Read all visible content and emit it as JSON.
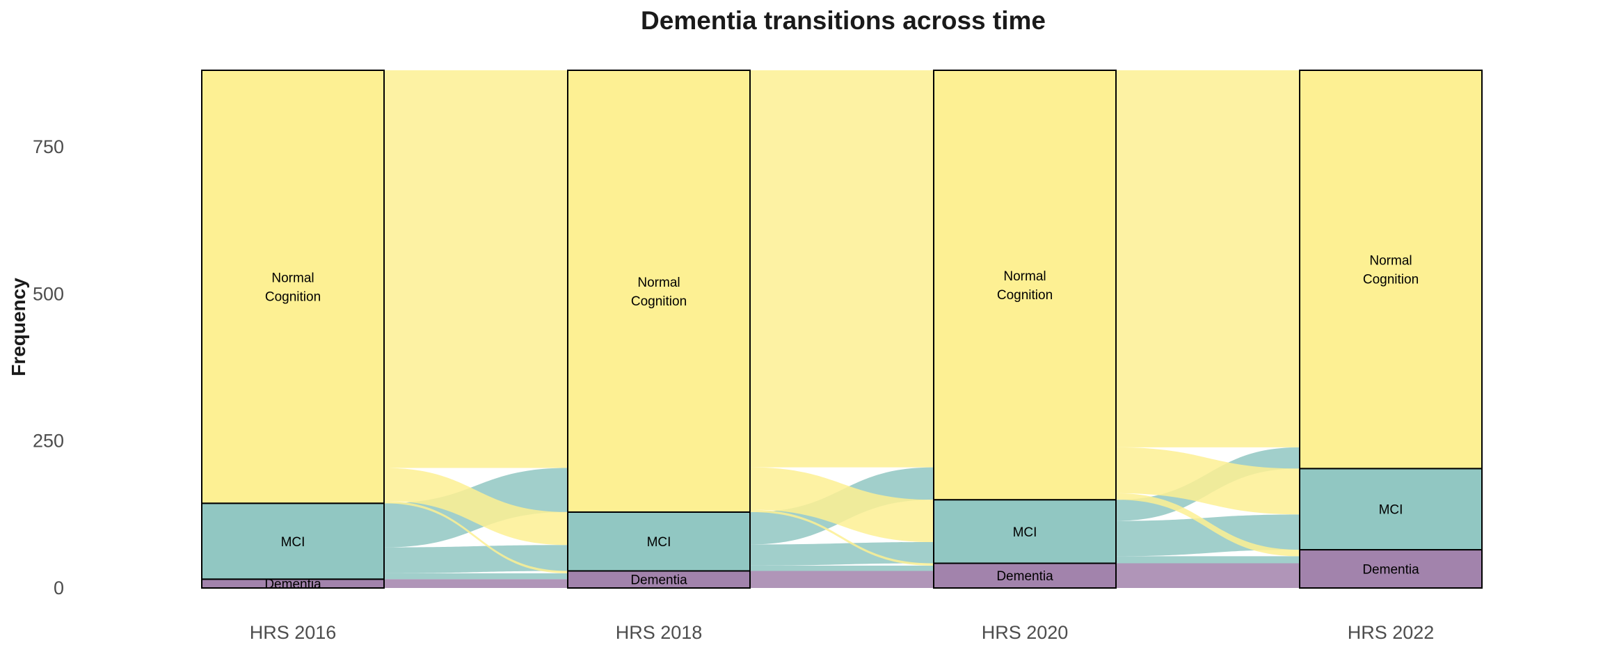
{
  "chart_data": {
    "type": "alluvial",
    "title": "Dementia transitions across time",
    "xlabel": "",
    "ylabel": "Frequency",
    "ylim": [
      0,
      880
    ],
    "yticks": [
      0,
      250,
      500,
      750
    ],
    "categories": [
      "HRS 2016",
      "HRS 2018",
      "HRS 2020",
      "HRS 2022"
    ],
    "states": [
      {
        "key": "dementia",
        "label": "Dementia",
        "color": "#a283ac"
      },
      {
        "key": "mci",
        "label": "MCI",
        "color": "#91c7c2"
      },
      {
        "key": "normal",
        "label": "Normal\nCognition",
        "color": "#fdf093"
      }
    ],
    "strata": [
      {
        "dementia": 15,
        "mci": 129,
        "normal": 736
      },
      {
        "dementia": 29,
        "mci": 100,
        "normal": 751
      },
      {
        "dementia": 42,
        "mci": 108,
        "normal": 730
      },
      {
        "dementia": 65,
        "mci": 138,
        "normal": 677
      }
    ],
    "flows": [
      [
        {
          "from": "dementia",
          "to": "dementia",
          "value": 15
        },
        {
          "from": "mci",
          "to": "dementia",
          "value": 10
        },
        {
          "from": "mci",
          "to": "mci",
          "value": 44
        },
        {
          "from": "mci",
          "to": "normal",
          "value": 75
        },
        {
          "from": "normal",
          "to": "dementia",
          "value": 4
        },
        {
          "from": "normal",
          "to": "mci",
          "value": 56
        },
        {
          "from": "normal",
          "to": "normal",
          "value": 676
        }
      ],
      [
        {
          "from": "dementia",
          "to": "dementia",
          "value": 29
        },
        {
          "from": "mci",
          "to": "dementia",
          "value": 9
        },
        {
          "from": "mci",
          "to": "mci",
          "value": 36
        },
        {
          "from": "mci",
          "to": "normal",
          "value": 55
        },
        {
          "from": "normal",
          "to": "dementia",
          "value": 4
        },
        {
          "from": "normal",
          "to": "mci",
          "value": 72
        },
        {
          "from": "normal",
          "to": "normal",
          "value": 675
        }
      ],
      [
        {
          "from": "dementia",
          "to": "dementia",
          "value": 42
        },
        {
          "from": "mci",
          "to": "dementia",
          "value": 12
        },
        {
          "from": "mci",
          "to": "mci",
          "value": 60
        },
        {
          "from": "mci",
          "to": "normal",
          "value": 36
        },
        {
          "from": "normal",
          "to": "dementia",
          "value": 11
        },
        {
          "from": "normal",
          "to": "mci",
          "value": 78
        },
        {
          "from": "normal",
          "to": "normal",
          "value": 641
        }
      ]
    ],
    "grid": false,
    "legend": "none"
  }
}
